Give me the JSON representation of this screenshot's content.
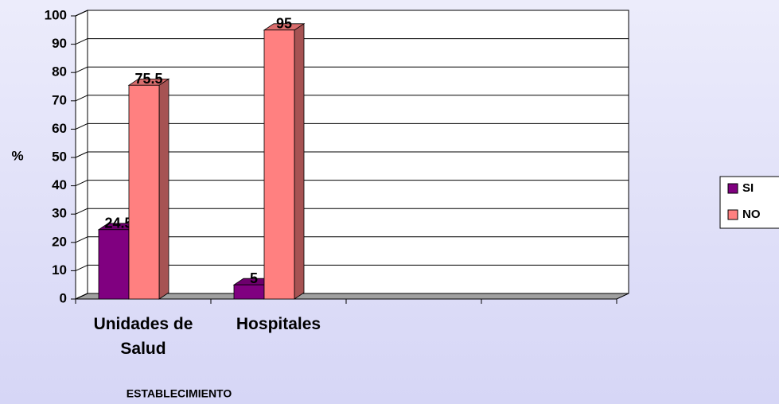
{
  "chart_data": {
    "type": "bar",
    "categories": [
      "Unidades de Salud",
      "Hospitales",
      null,
      null
    ],
    "series": [
      {
        "name": "SI",
        "color": "#800080",
        "values": [
          24.5,
          5,
          null,
          null
        ]
      },
      {
        "name": "NO",
        "color": "#ff8080",
        "values": [
          75.5,
          95,
          null,
          null
        ]
      }
    ],
    "ylabel": "%",
    "xlabel": "ESTABLECIMIENTO",
    "ylim": [
      0,
      100
    ],
    "yticks": [
      0,
      10,
      20,
      30,
      40,
      50,
      60,
      70,
      80,
      90,
      100
    ],
    "grid": true,
    "legend": "right"
  }
}
